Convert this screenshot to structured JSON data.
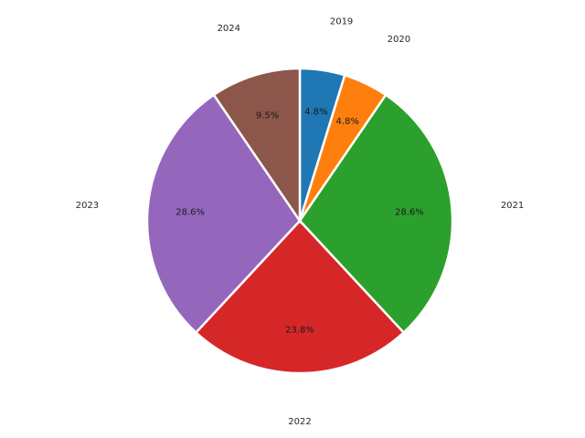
{
  "chart_data": {
    "type": "pie",
    "title": "",
    "categories": [
      "2019",
      "2020",
      "2021",
      "2022",
      "2023",
      "2024"
    ],
    "values": [
      1,
      1,
      6,
      5,
      6,
      2
    ],
    "percent_labels": [
      "4.8%",
      "4.8%",
      "28.6%",
      "23.8%",
      "28.6%",
      "9.5%"
    ],
    "colors": [
      "#1f77b4",
      "#ff7f0e",
      "#2ca02c",
      "#d62728",
      "#9467bd",
      "#8c564b"
    ],
    "start_angle": 90,
    "direction": "clockwise",
    "legend": "none"
  }
}
